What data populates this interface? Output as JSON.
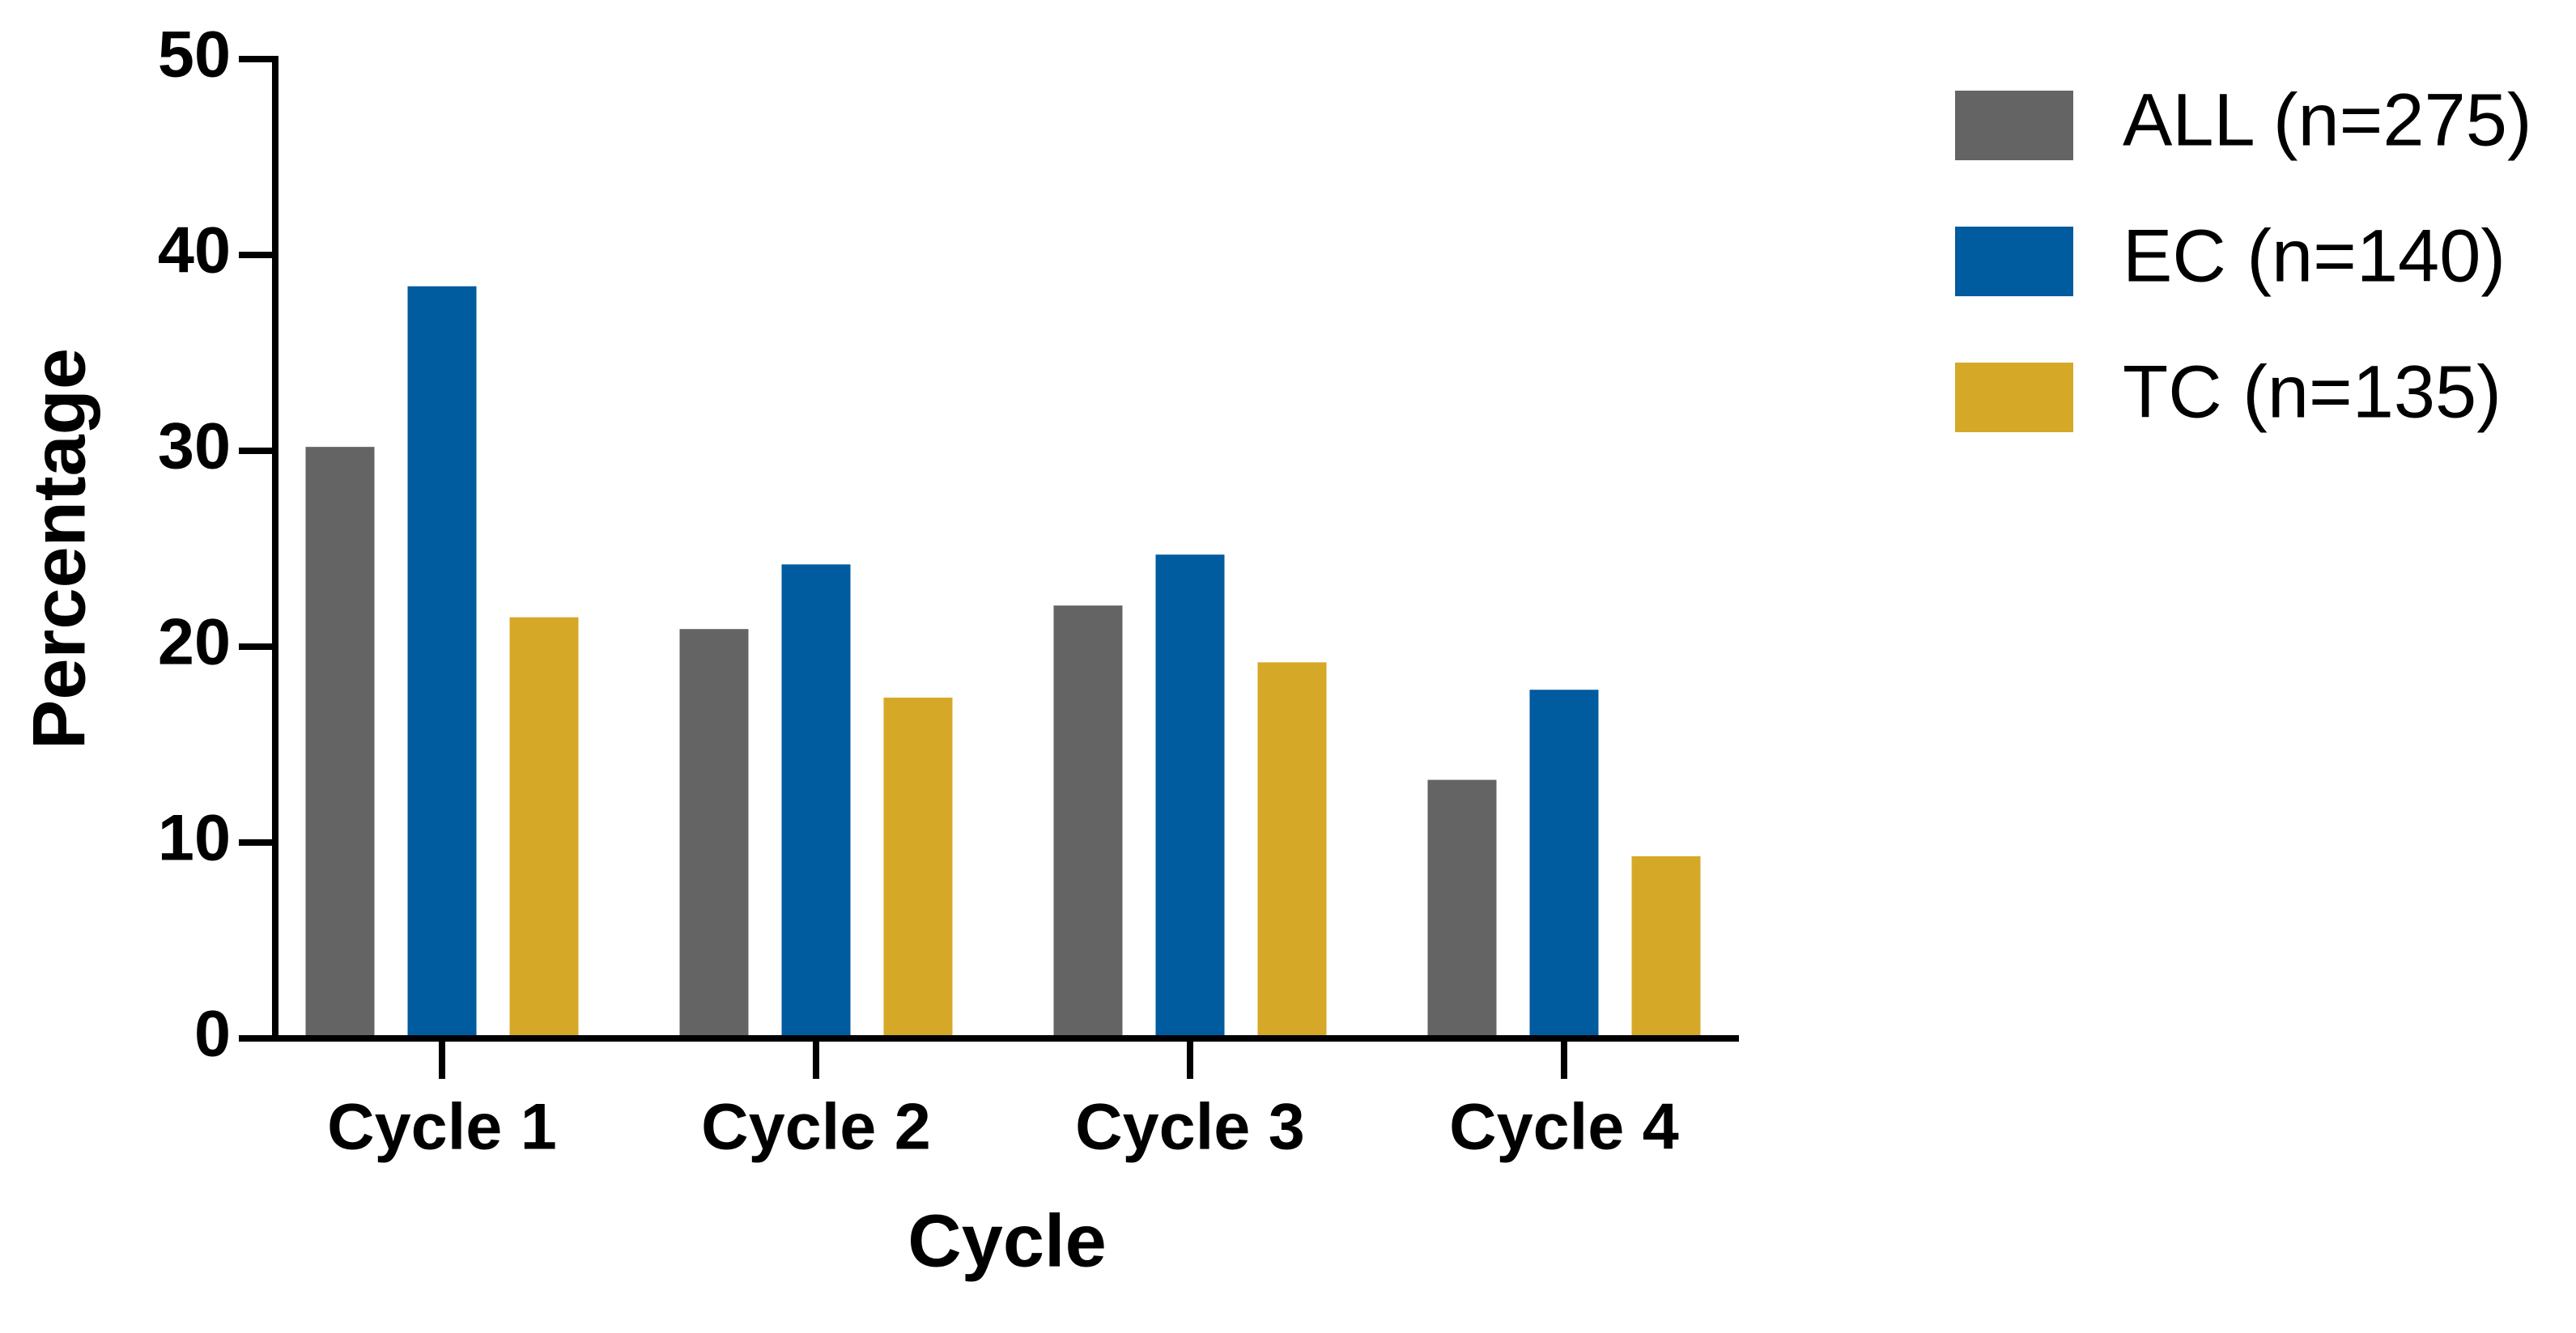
{
  "chart_data": {
    "type": "bar",
    "xlabel": "Cycle",
    "ylabel": "Percentage",
    "categories": [
      "Cycle 1",
      "Cycle 2",
      "Cycle 3",
      "Cycle 4"
    ],
    "series": [
      {
        "name": "ALL (n=275)",
        "color": "#646464",
        "values": [
          30.2,
          20.9,
          22.1,
          13.2
        ]
      },
      {
        "name": "EC (n=140)",
        "color": "#005b9f",
        "values": [
          38.4,
          24.2,
          24.7,
          17.8
        ]
      },
      {
        "name": "TC (n=135)",
        "color": "#d6a827",
        "values": [
          21.5,
          17.4,
          19.2,
          9.3
        ]
      }
    ],
    "ylim": [
      0,
      50
    ],
    "yticks": [
      0,
      10,
      20,
      30,
      40,
      50
    ],
    "legend": "right"
  }
}
